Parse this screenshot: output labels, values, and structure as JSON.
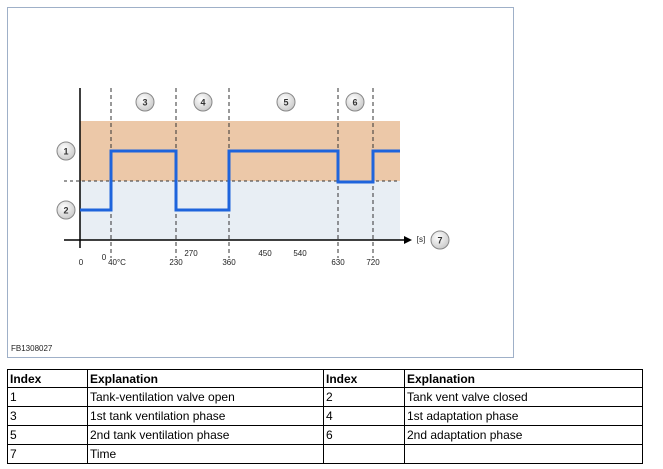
{
  "figure": {
    "code": "FB1308027",
    "axis_unit": "[s]",
    "axis_labels": [
      "0",
      "0",
      "40°C",
      "230",
      "270",
      "360",
      "450",
      "540",
      "630",
      "720"
    ],
    "callouts": [
      "1",
      "2",
      "3",
      "4",
      "5",
      "6",
      "7"
    ]
  },
  "table": {
    "header": [
      "Index",
      "Explanation",
      "Index",
      "Explanation"
    ],
    "rows": [
      [
        "1",
        "Tank-ventilation valve open",
        "2",
        "Tank vent valve closed"
      ],
      [
        "3",
        "1st tank ventilation phase",
        "4",
        "1st adaptation phase"
      ],
      [
        "5",
        "2nd tank ventilation phase",
        "6",
        "2nd adaptation phase"
      ],
      [
        "7",
        "Time"
      ]
    ]
  }
}
